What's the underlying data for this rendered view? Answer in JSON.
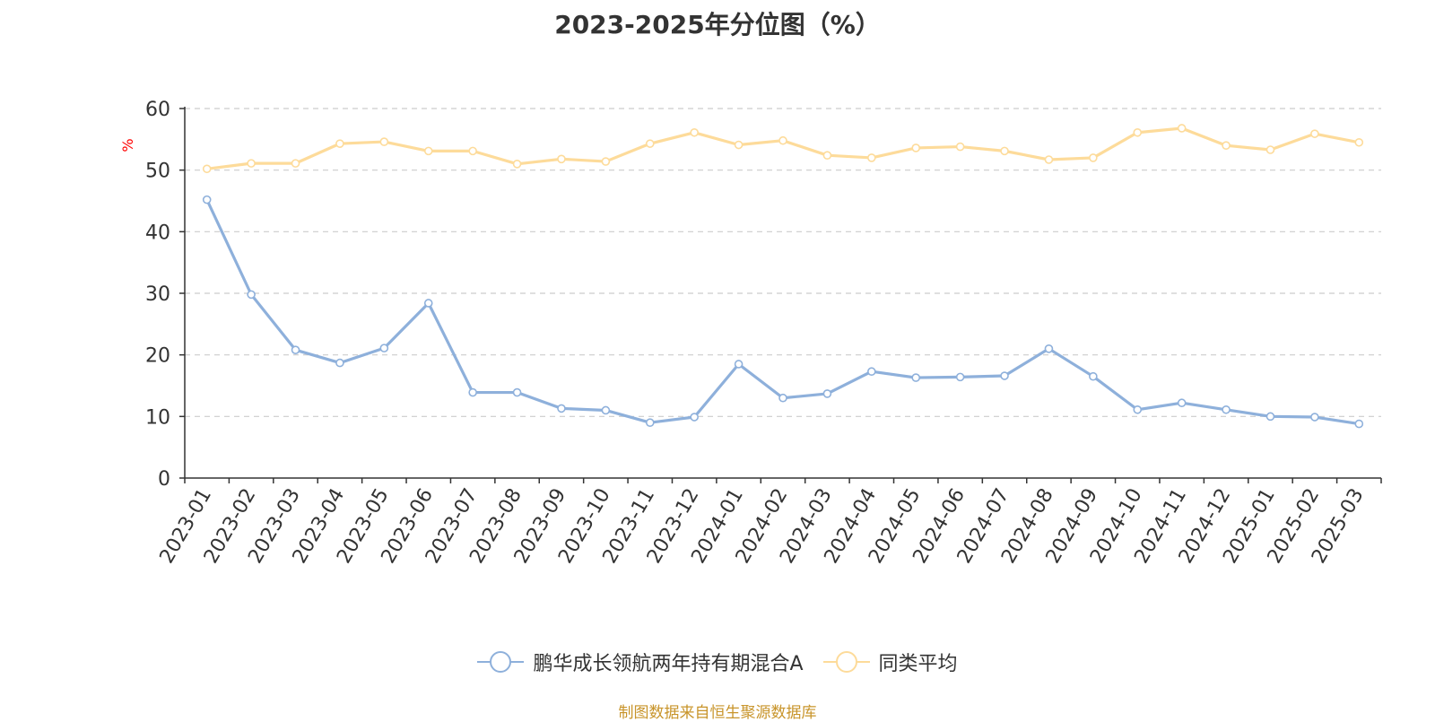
{
  "chart_data": {
    "type": "line",
    "title": "2023-2025年分位图（%）",
    "ylabel": "%",
    "xlabel": "",
    "ylim": [
      0,
      60
    ],
    "yticks": [
      0,
      10,
      20,
      30,
      40,
      50,
      60
    ],
    "grid": true,
    "legend_position": "bottom",
    "categories": [
      "2023-01",
      "2023-02",
      "2023-03",
      "2023-04",
      "2023-05",
      "2023-06",
      "2023-07",
      "2023-08",
      "2023-09",
      "2023-10",
      "2023-11",
      "2023-12",
      "2024-01",
      "2024-02",
      "2024-03",
      "2024-04",
      "2024-05",
      "2024-06",
      "2024-07",
      "2024-08",
      "2024-09",
      "2024-10",
      "2024-11",
      "2024-12",
      "2025-01",
      "2025-02",
      "2025-03"
    ],
    "series": [
      {
        "name": "鹏华成长领航两年持有期混合A",
        "color": "#8eb0db",
        "values": [
          45.2,
          29.8,
          20.8,
          18.7,
          21.1,
          28.4,
          13.9,
          13.9,
          11.3,
          11.0,
          9.0,
          9.9,
          18.5,
          13.0,
          13.7,
          17.3,
          16.3,
          16.4,
          16.6,
          21.0,
          16.5,
          11.1,
          12.2,
          11.1,
          10.0,
          9.9,
          8.8
        ]
      },
      {
        "name": "同类平均",
        "color": "#fddb9a",
        "values": [
          50.2,
          51.1,
          51.1,
          54.3,
          54.6,
          53.1,
          53.1,
          51.0,
          51.8,
          51.4,
          54.3,
          56.1,
          54.1,
          54.8,
          52.4,
          52.0,
          53.6,
          53.8,
          53.1,
          51.7,
          52.0,
          56.1,
          56.8,
          54.0,
          53.3,
          55.9,
          54.5
        ]
      }
    ]
  },
  "source_text": "制图数据来自恒生聚源数据库",
  "colors": {
    "axis": "#333333",
    "grid": "#cccccc",
    "ylabel": "#ff0000",
    "source": "#c8942a"
  }
}
